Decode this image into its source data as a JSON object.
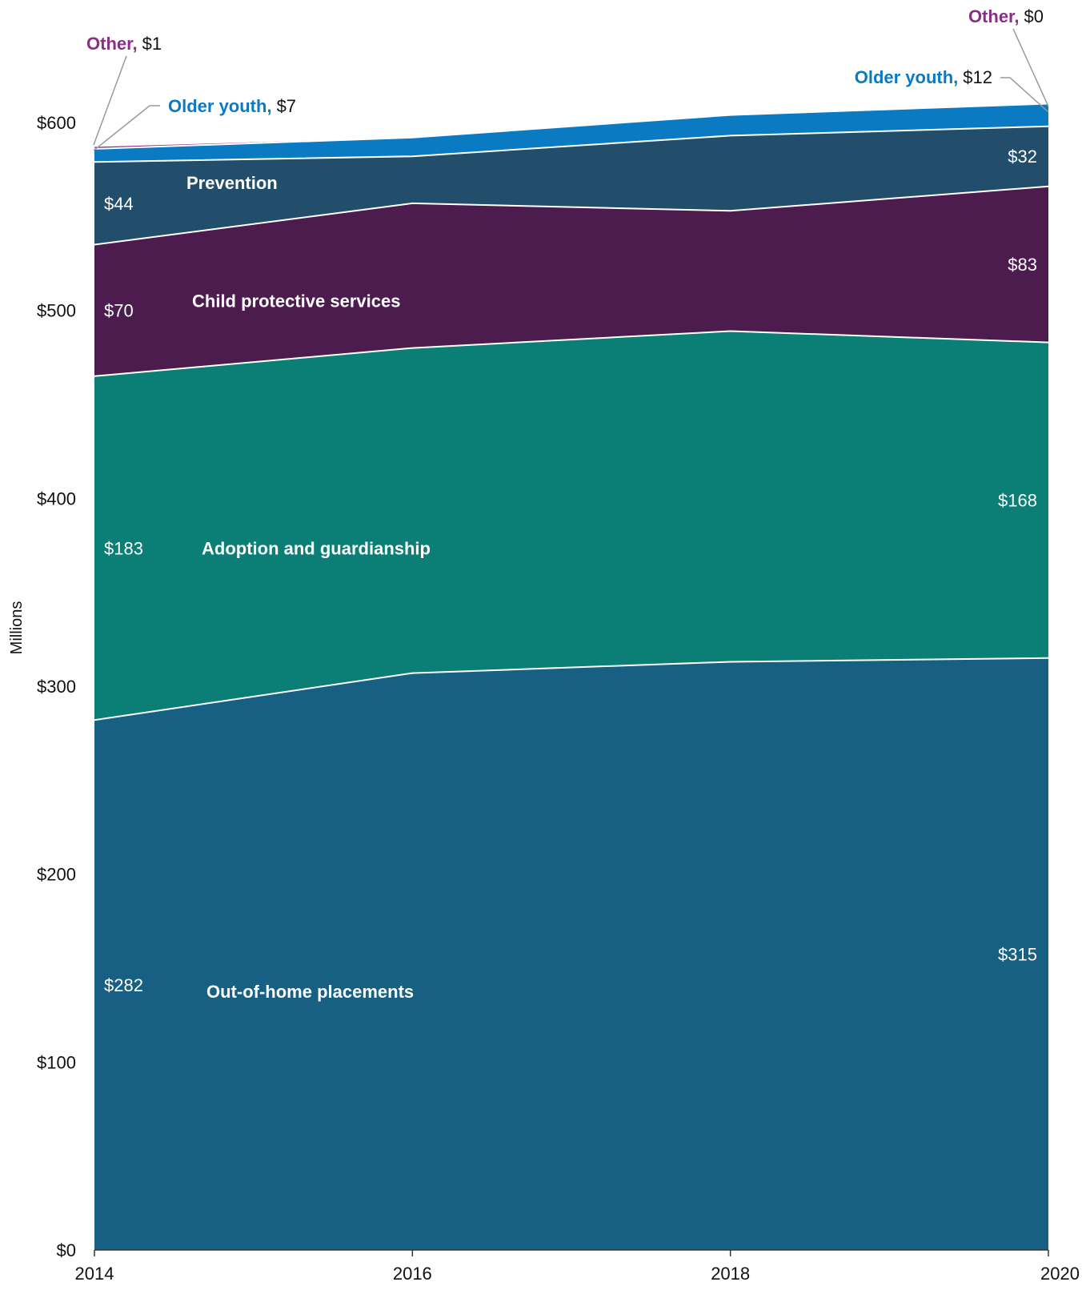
{
  "chart_data": {
    "type": "area",
    "stacked": true,
    "x": [
      2014,
      2016,
      2018,
      2020
    ],
    "ylabel": "Millions",
    "ylim": [
      0,
      650
    ],
    "yticks": [
      0,
      100,
      200,
      300,
      400,
      500,
      600
    ],
    "ytick_labels": [
      "$0",
      "$100",
      "$200",
      "$300",
      "$400",
      "$500",
      "$600"
    ],
    "xtick_labels": [
      "2014",
      "2016",
      "2018",
      "2020"
    ],
    "grid": false,
    "series": [
      {
        "name": "Out-of-home placements",
        "values": [
          282,
          307,
          313,
          315
        ],
        "color": "#176083",
        "start_label": "$282",
        "end_label": "$315"
      },
      {
        "name": "Adoption and guardianship",
        "values": [
          183,
          173,
          176,
          168
        ],
        "color": "#0b7f76",
        "start_label": "$183",
        "end_label": "$168"
      },
      {
        "name": "Child protective services",
        "values": [
          70,
          77,
          64,
          83
        ],
        "color": "#4c1c4f",
        "start_label": "$70",
        "end_label": "$83"
      },
      {
        "name": "Prevention",
        "values": [
          44,
          25,
          40,
          32
        ],
        "color": "#224e6c",
        "start_label": "$44",
        "end_label": "$32"
      },
      {
        "name": "Older youth",
        "values": [
          7,
          10,
          11,
          12
        ],
        "color": "#0a7ac2",
        "start_label": "$7",
        "end_label": "$12"
      },
      {
        "name": "Other",
        "values": [
          1,
          0,
          0,
          0
        ],
        "color": "#8b2f86",
        "start_label": "$1",
        "end_label": "$0"
      }
    ],
    "callouts": {
      "older_youth_name": "Older youth,",
      "other_name": "Other,"
    }
  }
}
